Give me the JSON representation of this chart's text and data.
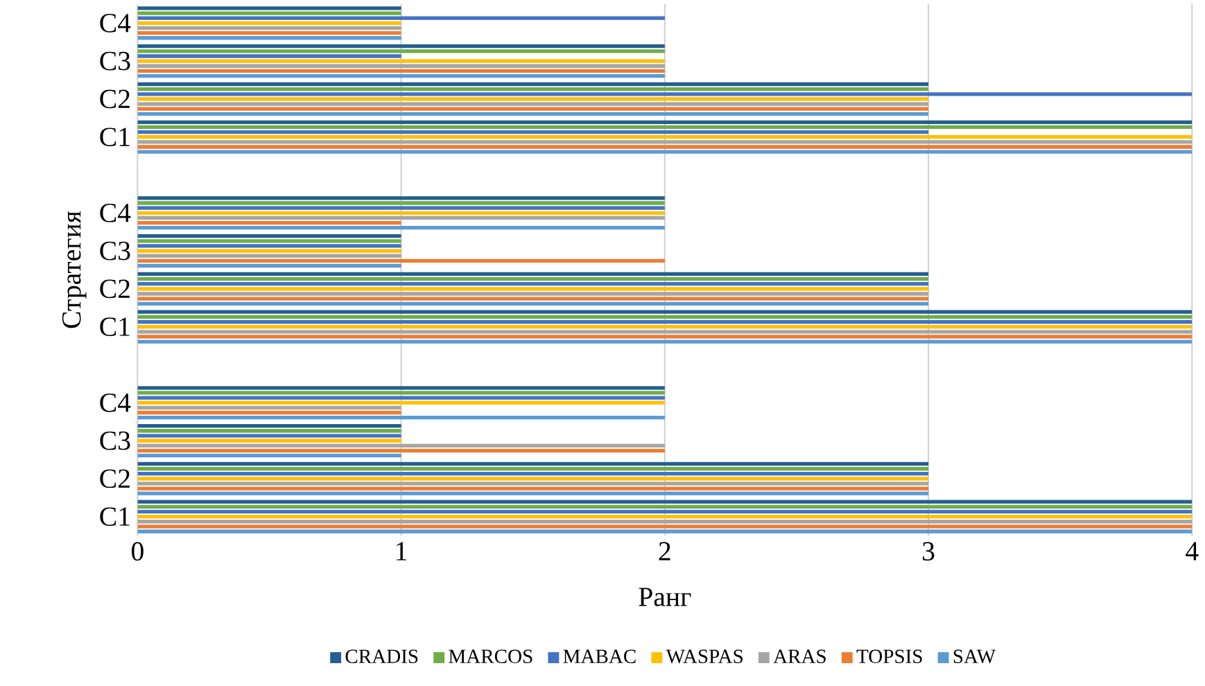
{
  "chart_data": {
    "type": "bar",
    "orientation": "horizontal",
    "xlabel": "Ранг",
    "ylabel": "Стратегия",
    "categories": [
      "C4",
      "C3",
      "C2",
      "C1",
      null,
      "C4",
      "C3",
      "C2",
      "C1",
      null,
      "C4",
      "C3",
      "C2",
      "C1"
    ],
    "series": [
      {
        "name": "CRADIS",
        "color": "#255e91",
        "values": [
          1,
          2,
          3,
          4,
          null,
          2,
          1,
          3,
          4,
          null,
          2,
          1,
          3,
          4
        ]
      },
      {
        "name": "MARCOS",
        "color": "#70ad47",
        "values": [
          1,
          2,
          3,
          4,
          null,
          2,
          1,
          3,
          4,
          null,
          2,
          1,
          3,
          4
        ]
      },
      {
        "name": "MABAC",
        "color": "#4472c4",
        "values": [
          2,
          1,
          4,
          3,
          null,
          2,
          1,
          3,
          4,
          null,
          2,
          1,
          3,
          4
        ]
      },
      {
        "name": "WASPAS",
        "color": "#ffc000",
        "values": [
          1,
          2,
          3,
          4,
          null,
          2,
          1,
          3,
          4,
          null,
          2,
          1,
          3,
          4
        ]
      },
      {
        "name": "ARAS",
        "color": "#a5a5a5",
        "values": [
          1,
          2,
          3,
          4,
          null,
          2,
          1,
          3,
          4,
          null,
          1,
          2,
          3,
          4
        ]
      },
      {
        "name": "TOPSIS",
        "color": "#ed7d31",
        "values": [
          1,
          2,
          3,
          4,
          null,
          1,
          2,
          3,
          4,
          null,
          1,
          2,
          3,
          4
        ]
      },
      {
        "name": "SAW",
        "color": "#5b9bd5",
        "values": [
          1,
          2,
          3,
          4,
          null,
          2,
          1,
          3,
          4,
          null,
          2,
          1,
          3,
          4
        ]
      }
    ],
    "xlim": [
      0,
      4
    ],
    "xticks": [
      0,
      1,
      2,
      3,
      4
    ],
    "grid": "x",
    "legend": "bottom"
  }
}
